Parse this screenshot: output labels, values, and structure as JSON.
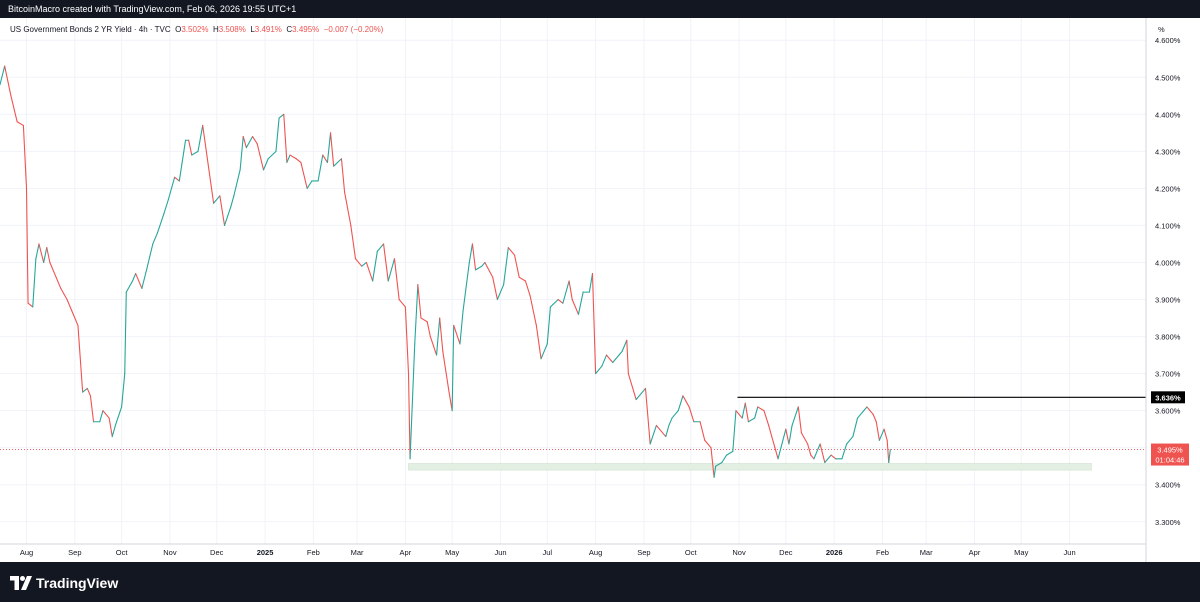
{
  "header": {
    "caption": "BitcoinMacro created with TradingView.com, Feb 06, 2026 19:55 UTC+1"
  },
  "legend": {
    "symbol": "US Government Bonds 2 YR Yield · 4h · TVC",
    "o_label": "O",
    "o": "3.502%",
    "h_label": "H",
    "h": "3.508%",
    "l_label": "L",
    "l": "3.491%",
    "c_label": "C",
    "c": "3.495%",
    "change": "−0.007 (−0.20%)"
  },
  "footer": {
    "brand": "TradingView",
    "logo_icon": "tradingview-logo-icon"
  },
  "colors": {
    "up": "#26a69a",
    "down": "#ef5350",
    "level_line": "#000000",
    "support_band": "#e3efe3",
    "last_price": "#ef5350"
  },
  "chart_data": {
    "type": "line",
    "subtype": "candlestick-ohlc-4h",
    "unit_label": "%",
    "ylim": [
      3.24,
      4.66
    ],
    "y_ticks": [
      "4.600%",
      "4.500%",
      "4.400%",
      "4.300%",
      "4.200%",
      "4.100%",
      "4.000%",
      "3.900%",
      "3.800%",
      "3.700%",
      "3.600%",
      "3.500%",
      "3.400%",
      "3.300%"
    ],
    "y_tick_values": [
      4.6,
      4.5,
      4.4,
      4.3,
      4.2,
      4.1,
      4.0,
      3.9,
      3.8,
      3.7,
      3.6,
      3.5,
      3.4,
      3.3
    ],
    "x_range": [
      "2024-07-15",
      "2026-07-20"
    ],
    "x_ticks": [
      {
        "label": "Aug",
        "date": "2024-08-01"
      },
      {
        "label": "Sep",
        "date": "2024-09-01"
      },
      {
        "label": "Oct",
        "date": "2024-10-01"
      },
      {
        "label": "Nov",
        "date": "2024-11-01"
      },
      {
        "label": "Dec",
        "date": "2024-12-01"
      },
      {
        "label": "2025",
        "date": "2025-01-01",
        "bold": true
      },
      {
        "label": "Feb",
        "date": "2025-02-01"
      },
      {
        "label": "Mar",
        "date": "2025-03-01"
      },
      {
        "label": "Apr",
        "date": "2025-04-01"
      },
      {
        "label": "May",
        "date": "2025-05-01"
      },
      {
        "label": "Jun",
        "date": "2025-06-01"
      },
      {
        "label": "Jul",
        "date": "2025-07-01"
      },
      {
        "label": "Aug",
        "date": "2025-08-01"
      },
      {
        "label": "Sep",
        "date": "2025-09-01"
      },
      {
        "label": "Oct",
        "date": "2025-10-01"
      },
      {
        "label": "Nov",
        "date": "2025-11-01"
      },
      {
        "label": "Dec",
        "date": "2025-12-01"
      },
      {
        "label": "2026",
        "date": "2026-01-01",
        "bold": true
      },
      {
        "label": "Feb",
        "date": "2026-02-01"
      },
      {
        "label": "Mar",
        "date": "2026-03-01"
      },
      {
        "label": "Apr",
        "date": "2026-04-01"
      },
      {
        "label": "May",
        "date": "2026-05-01"
      },
      {
        "label": "Jun",
        "date": "2026-06-01"
      }
    ],
    "series": [
      {
        "points": [
          [
            "2024-07-15",
            4.48
          ],
          [
            "2024-07-18",
            4.53
          ],
          [
            "2024-07-22",
            4.45
          ],
          [
            "2024-07-26",
            4.38
          ],
          [
            "2024-07-30",
            4.37
          ],
          [
            "2024-08-01",
            4.2
          ],
          [
            "2024-08-02",
            3.89
          ],
          [
            "2024-08-05",
            3.88
          ],
          [
            "2024-08-07",
            4.01
          ],
          [
            "2024-08-09",
            4.05
          ],
          [
            "2024-08-12",
            4.0
          ],
          [
            "2024-08-14",
            4.04
          ],
          [
            "2024-08-16",
            4.0
          ],
          [
            "2024-08-20",
            3.96
          ],
          [
            "2024-08-23",
            3.93
          ],
          [
            "2024-08-27",
            3.9
          ],
          [
            "2024-08-30",
            3.87
          ],
          [
            "2024-09-03",
            3.83
          ],
          [
            "2024-09-06",
            3.65
          ],
          [
            "2024-09-09",
            3.66
          ],
          [
            "2024-09-11",
            3.64
          ],
          [
            "2024-09-13",
            3.57
          ],
          [
            "2024-09-17",
            3.57
          ],
          [
            "2024-09-19",
            3.6
          ],
          [
            "2024-09-23",
            3.58
          ],
          [
            "2024-09-25",
            3.53
          ],
          [
            "2024-09-27",
            3.56
          ],
          [
            "2024-10-01",
            3.61
          ],
          [
            "2024-10-03",
            3.7
          ],
          [
            "2024-10-04",
            3.92
          ],
          [
            "2024-10-08",
            3.95
          ],
          [
            "2024-10-10",
            3.97
          ],
          [
            "2024-10-14",
            3.93
          ],
          [
            "2024-10-17",
            3.98
          ],
          [
            "2024-10-21",
            4.05
          ],
          [
            "2024-10-24",
            4.08
          ],
          [
            "2024-10-28",
            4.13
          ],
          [
            "2024-10-31",
            4.17
          ],
          [
            "2024-11-04",
            4.23
          ],
          [
            "2024-11-07",
            4.22
          ],
          [
            "2024-11-11",
            4.33
          ],
          [
            "2024-11-13",
            4.33
          ],
          [
            "2024-11-15",
            4.29
          ],
          [
            "2024-11-19",
            4.3
          ],
          [
            "2024-11-22",
            4.37
          ],
          [
            "2024-11-26",
            4.25
          ],
          [
            "2024-11-29",
            4.16
          ],
          [
            "2024-12-03",
            4.18
          ],
          [
            "2024-12-06",
            4.1
          ],
          [
            "2024-12-10",
            4.15
          ],
          [
            "2024-12-12",
            4.18
          ],
          [
            "2024-12-16",
            4.25
          ],
          [
            "2024-12-18",
            4.34
          ],
          [
            "2024-12-20",
            4.31
          ],
          [
            "2024-12-24",
            4.34
          ],
          [
            "2024-12-27",
            4.32
          ],
          [
            "2024-12-31",
            4.25
          ],
          [
            "2025-01-03",
            4.28
          ],
          [
            "2025-01-08",
            4.3
          ],
          [
            "2025-01-10",
            4.39
          ],
          [
            "2025-01-13",
            4.4
          ],
          [
            "2025-01-15",
            4.27
          ],
          [
            "2025-01-17",
            4.29
          ],
          [
            "2025-01-21",
            4.28
          ],
          [
            "2025-01-24",
            4.27
          ],
          [
            "2025-01-28",
            4.2
          ],
          [
            "2025-01-31",
            4.22
          ],
          [
            "2025-02-04",
            4.22
          ],
          [
            "2025-02-07",
            4.29
          ],
          [
            "2025-02-10",
            4.27
          ],
          [
            "2025-02-12",
            4.35
          ],
          [
            "2025-02-14",
            4.26
          ],
          [
            "2025-02-19",
            4.28
          ],
          [
            "2025-02-21",
            4.19
          ],
          [
            "2025-02-25",
            4.1
          ],
          [
            "2025-02-28",
            4.01
          ],
          [
            "2025-03-04",
            3.99
          ],
          [
            "2025-03-07",
            4.0
          ],
          [
            "2025-03-11",
            3.95
          ],
          [
            "2025-03-14",
            4.03
          ],
          [
            "2025-03-18",
            4.05
          ],
          [
            "2025-03-21",
            3.95
          ],
          [
            "2025-03-25",
            4.01
          ],
          [
            "2025-03-28",
            3.9
          ],
          [
            "2025-04-01",
            3.88
          ],
          [
            "2025-04-03",
            3.7
          ],
          [
            "2025-04-04",
            3.47
          ],
          [
            "2025-04-07",
            3.78
          ],
          [
            "2025-04-09",
            3.94
          ],
          [
            "2025-04-11",
            3.85
          ],
          [
            "2025-04-15",
            3.84
          ],
          [
            "2025-04-17",
            3.8
          ],
          [
            "2025-04-21",
            3.75
          ],
          [
            "2025-04-23",
            3.85
          ],
          [
            "2025-04-25",
            3.76
          ],
          [
            "2025-04-29",
            3.65
          ],
          [
            "2025-05-01",
            3.6
          ],
          [
            "2025-05-02",
            3.83
          ],
          [
            "2025-05-06",
            3.78
          ],
          [
            "2025-05-08",
            3.87
          ],
          [
            "2025-05-12",
            4.0
          ],
          [
            "2025-05-14",
            4.05
          ],
          [
            "2025-05-16",
            3.98
          ],
          [
            "2025-05-20",
            3.99
          ],
          [
            "2025-05-22",
            4.0
          ],
          [
            "2025-05-27",
            3.96
          ],
          [
            "2025-05-30",
            3.9
          ],
          [
            "2025-06-03",
            3.94
          ],
          [
            "2025-06-06",
            4.04
          ],
          [
            "2025-06-10",
            4.02
          ],
          [
            "2025-06-13",
            3.96
          ],
          [
            "2025-06-17",
            3.95
          ],
          [
            "2025-06-20",
            3.91
          ],
          [
            "2025-06-24",
            3.83
          ],
          [
            "2025-06-27",
            3.74
          ],
          [
            "2025-07-01",
            3.78
          ],
          [
            "2025-07-03",
            3.88
          ],
          [
            "2025-07-08",
            3.9
          ],
          [
            "2025-07-11",
            3.89
          ],
          [
            "2025-07-15",
            3.95
          ],
          [
            "2025-07-17",
            3.9
          ],
          [
            "2025-07-21",
            3.86
          ],
          [
            "2025-07-24",
            3.92
          ],
          [
            "2025-07-28",
            3.92
          ],
          [
            "2025-07-30",
            3.97
          ],
          [
            "2025-08-01",
            3.7
          ],
          [
            "2025-08-05",
            3.72
          ],
          [
            "2025-08-08",
            3.75
          ],
          [
            "2025-08-12",
            3.73
          ],
          [
            "2025-08-14",
            3.74
          ],
          [
            "2025-08-18",
            3.76
          ],
          [
            "2025-08-21",
            3.79
          ],
          [
            "2025-08-22",
            3.7
          ],
          [
            "2025-08-27",
            3.63
          ],
          [
            "2025-09-02",
            3.66
          ],
          [
            "2025-09-05",
            3.51
          ],
          [
            "2025-09-09",
            3.56
          ],
          [
            "2025-09-11",
            3.55
          ],
          [
            "2025-09-15",
            3.53
          ],
          [
            "2025-09-17",
            3.56
          ],
          [
            "2025-09-19",
            3.58
          ],
          [
            "2025-09-23",
            3.6
          ],
          [
            "2025-09-26",
            3.64
          ],
          [
            "2025-09-30",
            3.61
          ],
          [
            "2025-10-03",
            3.57
          ],
          [
            "2025-10-07",
            3.57
          ],
          [
            "2025-10-10",
            3.52
          ],
          [
            "2025-10-14",
            3.5
          ],
          [
            "2025-10-16",
            3.42
          ],
          [
            "2025-10-17",
            3.45
          ],
          [
            "2025-10-21",
            3.46
          ],
          [
            "2025-10-24",
            3.48
          ],
          [
            "2025-10-28",
            3.49
          ],
          [
            "2025-10-30",
            3.6
          ],
          [
            "2025-11-03",
            3.58
          ],
          [
            "2025-11-05",
            3.62
          ],
          [
            "2025-11-07",
            3.57
          ],
          [
            "2025-11-11",
            3.58
          ],
          [
            "2025-11-13",
            3.61
          ],
          [
            "2025-11-17",
            3.6
          ],
          [
            "2025-11-20",
            3.56
          ],
          [
            "2025-11-24",
            3.5
          ],
          [
            "2025-11-26",
            3.47
          ],
          [
            "2025-12-01",
            3.55
          ],
          [
            "2025-12-03",
            3.51
          ],
          [
            "2025-12-05",
            3.56
          ],
          [
            "2025-12-09",
            3.61
          ],
          [
            "2025-12-11",
            3.54
          ],
          [
            "2025-12-15",
            3.51
          ],
          [
            "2025-12-17",
            3.48
          ],
          [
            "2025-12-19",
            3.47
          ],
          [
            "2025-12-23",
            3.51
          ],
          [
            "2025-12-26",
            3.46
          ],
          [
            "2025-12-30",
            3.48
          ],
          [
            "2026-01-02",
            3.47
          ],
          [
            "2026-01-06",
            3.47
          ],
          [
            "2026-01-09",
            3.51
          ],
          [
            "2026-01-13",
            3.53
          ],
          [
            "2026-01-16",
            3.58
          ],
          [
            "2026-01-20",
            3.6
          ],
          [
            "2026-01-22",
            3.61
          ],
          [
            "2026-01-26",
            3.59
          ],
          [
            "2026-01-28",
            3.57
          ],
          [
            "2026-01-30",
            3.52
          ],
          [
            "2026-02-02",
            3.55
          ],
          [
            "2026-02-04",
            3.52
          ],
          [
            "2026-02-05",
            3.46
          ],
          [
            "2026-02-06",
            3.495
          ]
        ]
      }
    ],
    "annotations": [
      {
        "type": "horizontal-ray",
        "value": 3.636,
        "start": "2025-10-31",
        "label": "3.636%"
      },
      {
        "type": "band",
        "low": 3.445,
        "high": 3.452,
        "start": "2025-04-03",
        "end": "2026-06-15"
      },
      {
        "type": "last-price",
        "value": 3.495,
        "label": "3.495%",
        "countdown": "01:04:46"
      }
    ]
  }
}
